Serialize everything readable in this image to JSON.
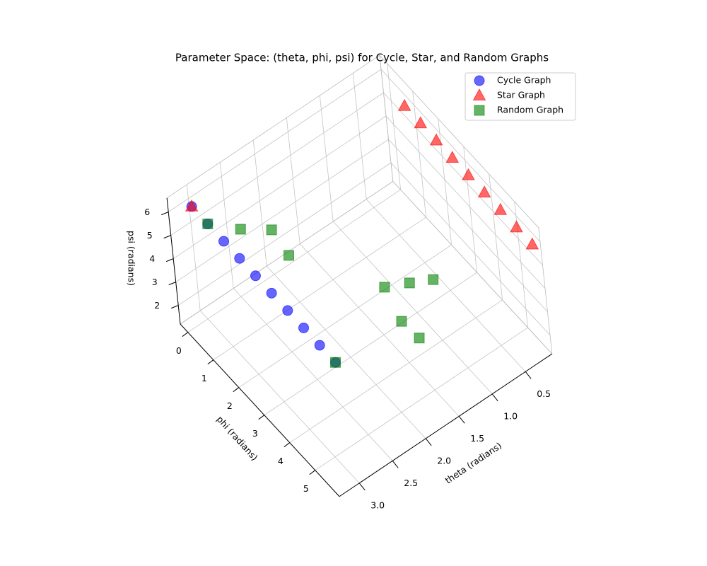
{
  "chart_data": {
    "type": "scatter3d",
    "title": "Parameter Space: (theta, phi, psi) for Cycle, Star, and Random Graphs",
    "xlabel": "theta (radians)",
    "ylabel": "phi (radians)",
    "zlabel": "psi (radians)",
    "xlim": [
      0.1,
      3.3
    ],
    "ylim": [
      -0.3,
      5.95
    ],
    "zlim": [
      1.2,
      6.6
    ],
    "xticks": [
      0.5,
      {
        "value": 1,
        "label": "1.0"
      },
      1.5,
      {
        "value": 2,
        "label": "2.0"
      },
      2.5,
      {
        "value": 3,
        "label": "3.0"
      }
    ],
    "yticks": [
      0,
      1,
      2,
      3,
      4,
      5
    ],
    "zticks": [
      2,
      3,
      4,
      5,
      6
    ],
    "grid": true,
    "legend": "upper right",
    "series": [
      {
        "name": "Cycle Graph",
        "color": "#0000ff",
        "marker": "circle",
        "x": [
          3.06,
          3.06,
          3.06,
          3.06,
          3.06,
          3.06,
          3.06,
          3.06,
          3.06,
          3.06
        ],
        "y": [
          0,
          0.63,
          1.26,
          1.88,
          2.51,
          3.14,
          3.77,
          4.4,
          5.03,
          5.65
        ],
        "z": [
          6.13,
          6.13,
          6.13,
          6.13,
          6.13,
          6.13,
          6.13,
          6.13,
          6.13,
          6.13
        ]
      },
      {
        "name": "Star Graph",
        "color": "#ff0000",
        "marker": "triangle",
        "x": [
          3.06,
          0.12,
          0.12,
          0.12,
          0.12,
          0.12,
          0.12,
          0.12,
          0.12,
          0.12
        ],
        "y": [
          0,
          0.63,
          1.26,
          1.88,
          2.51,
          3.14,
          3.77,
          4.4,
          5.03,
          5.65
        ],
        "z": [
          6.13,
          5.57,
          5.57,
          5.57,
          5.57,
          5.57,
          5.57,
          5.57,
          5.57,
          5.57
        ]
      },
      {
        "name": "Random Graph",
        "color": "#008000",
        "marker": "square",
        "x": [
          3.06,
          2.6,
          2.14,
          2.11,
          1.67,
          1.49,
          1.33,
          1.45,
          1.34,
          3.06
        ],
        "y": [
          0.63,
          0.61,
          0.53,
          1.08,
          3.79,
          4.35,
          4.91,
          3.69,
          4.05,
          5.65
        ],
        "z": [
          6.13,
          5.0,
          4.0,
          3.5,
          4.5,
          5.0,
          5.5,
          2.5,
          2.0,
          6.13
        ]
      }
    ]
  }
}
